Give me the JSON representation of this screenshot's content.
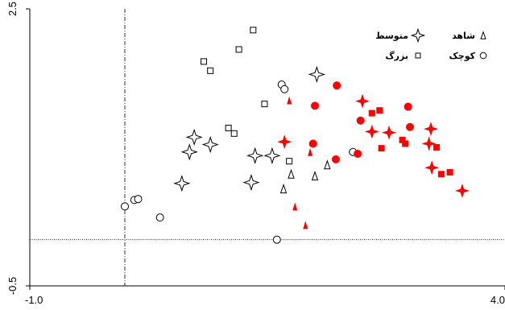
{
  "chart_data": {
    "type": "scatter",
    "title": "",
    "xlabel": "",
    "ylabel": "",
    "xlim": [
      -1.0,
      4.0
    ],
    "ylim": [
      -0.5,
      2.5
    ],
    "x_ticks": [
      {
        "value": -1.0,
        "label": "-1.0"
      },
      {
        "value": 4.0,
        "label": "4.0"
      }
    ],
    "y_ticks": [
      {
        "value": -0.5,
        "label": "-0.5"
      },
      {
        "value": 2.5,
        "label": "2.5"
      }
    ],
    "reference_lines": {
      "x": 0.0,
      "y": 0.0
    },
    "legend_position": "top-right",
    "series": [
      {
        "name": "کوچک",
        "marker": "circle",
        "fill": "none",
        "color": "#000000",
        "points": [
          [
            0.0,
            0.36
          ],
          [
            0.1,
            0.43
          ],
          [
            0.14,
            0.44
          ],
          [
            0.37,
            0.24
          ],
          [
            1.6,
            0.0
          ],
          [
            1.65,
            1.68
          ],
          [
            1.68,
            1.63
          ],
          [
            2.4,
            0.95
          ]
        ]
      },
      {
        "name": "کوچک",
        "marker": "circle",
        "fill": "solid",
        "color": "#ff0000",
        "points": [
          [
            1.98,
            1.04
          ],
          [
            2.0,
            1.45
          ],
          [
            2.22,
            0.87
          ],
          [
            2.23,
            1.67
          ],
          [
            2.45,
            0.93
          ],
          [
            2.48,
            1.29
          ],
          [
            2.98,
            1.44
          ],
          [
            3.0,
            1.22
          ]
        ]
      },
      {
        "name": "بزرگ",
        "marker": "square",
        "fill": "none",
        "color": "#000000",
        "points": [
          [
            0.83,
            1.93
          ],
          [
            0.9,
            1.83
          ],
          [
            1.09,
            1.21
          ],
          [
            1.15,
            1.15
          ],
          [
            1.2,
            2.06
          ],
          [
            1.35,
            2.27
          ],
          [
            1.47,
            1.47
          ],
          [
            1.73,
            0.85
          ]
        ]
      },
      {
        "name": "بزرگ",
        "marker": "square",
        "fill": "solid",
        "color": "#ff0000",
        "points": [
          [
            2.6,
            1.37
          ],
          [
            2.68,
            1.4
          ],
          [
            2.7,
            0.99
          ],
          [
            2.92,
            1.08
          ],
          [
            2.95,
            1.04
          ],
          [
            3.28,
            1.0
          ],
          [
            3.33,
            0.71
          ],
          [
            3.42,
            0.73
          ]
        ]
      },
      {
        "name": "متوسط",
        "marker": "star4",
        "fill": "none",
        "color": "#000000",
        "points": [
          [
            0.6,
            0.61
          ],
          [
            0.68,
            0.95
          ],
          [
            0.73,
            1.11
          ],
          [
            0.9,
            1.03
          ],
          [
            1.33,
            0.62
          ],
          [
            1.37,
            0.91
          ],
          [
            1.55,
            0.91
          ],
          [
            2.02,
            1.79
          ]
        ]
      },
      {
        "name": "متوسط",
        "marker": "star4",
        "fill": "solid",
        "color": "#ff0000",
        "points": [
          [
            1.68,
            1.06
          ],
          [
            2.5,
            1.5
          ],
          [
            2.6,
            1.17
          ],
          [
            2.78,
            1.16
          ],
          [
            3.2,
            1.04
          ],
          [
            3.22,
            1.2
          ],
          [
            3.23,
            0.78
          ],
          [
            3.55,
            0.53
          ]
        ]
      },
      {
        "name": "شاهد",
        "marker": "triangle",
        "fill": "none",
        "color": "#000000",
        "points": [
          [
            1.67,
            0.55
          ],
          [
            1.75,
            0.71
          ],
          [
            2.0,
            0.69
          ],
          [
            2.13,
            0.81
          ]
        ]
      },
      {
        "name": "شاهد",
        "marker": "triangle",
        "fill": "solid",
        "color": "#ff0000",
        "points": [
          [
            1.73,
            1.51
          ],
          [
            1.79,
            0.36
          ],
          [
            1.9,
            0.16
          ],
          [
            1.95,
            0.95
          ]
        ]
      }
    ],
    "legend": [
      {
        "label": "شاهد",
        "marker": "triangle"
      },
      {
        "label": "متوسط",
        "marker": "star4"
      },
      {
        "label": "کوچک",
        "marker": "circle"
      },
      {
        "label": "بزرگ",
        "marker": "square"
      }
    ]
  }
}
